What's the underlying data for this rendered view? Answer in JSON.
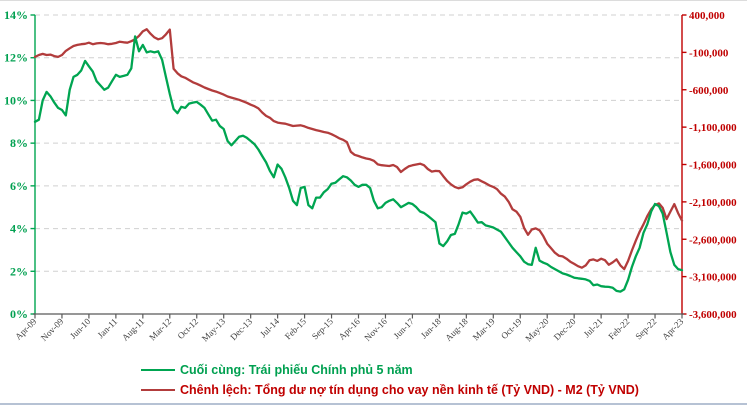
{
  "chart_data": {
    "type": "line",
    "title": "",
    "x_unit": "month",
    "x_range_labels": [
      "Apr-09",
      "Apr-23"
    ],
    "x_tick_labels": [
      "Apr-09",
      "Nov-09",
      "Jun-10",
      "Jan-11",
      "Aug-11",
      "Mar-12",
      "Oct-12",
      "May-13",
      "Dec-13",
      "Jul-14",
      "Feb-15",
      "Sep-15",
      "Apr-16",
      "Nov-16",
      "Jun-17",
      "Jan-18",
      "Aug-18",
      "Mar-19",
      "Oct-19",
      "May-20",
      "Dec-20",
      "Jul-21",
      "Feb-22",
      "Sep-22",
      "Apr-23"
    ],
    "left_axis": {
      "unit": "%",
      "min": 0,
      "max": 14,
      "step": 2,
      "labels": [
        "14%",
        "12%",
        "10%",
        "8%",
        "6%",
        "4%",
        "2%",
        "0%"
      ]
    },
    "right_axis": {
      "unit": "Tỷ VND",
      "min": -3600000,
      "max": 400000,
      "step": 500000,
      "labels": [
        "400,000",
        "-100,000",
        "-600,000",
        "-1,100,000",
        "-1,600,000",
        "-2,100,000",
        "-2,600,000",
        "-3,100,000",
        "-3,600,000"
      ]
    },
    "grid": "horizontal-dashed",
    "legend_position": "bottom-left",
    "series": [
      {
        "name": "Cuối cùng: Trái phiếu Chính phủ 5 năm",
        "axis": "left",
        "color": "#00a551",
        "text_color": "#00a050",
        "values": [
          9.0,
          9.1,
          10.0,
          10.4,
          10.2,
          9.9,
          9.65,
          9.55,
          9.3,
          10.5,
          11.1,
          11.2,
          11.4,
          11.85,
          11.6,
          11.35,
          10.9,
          10.7,
          10.5,
          10.6,
          10.9,
          11.2,
          11.1,
          11.15,
          11.2,
          11.5,
          13.0,
          12.3,
          12.6,
          12.25,
          12.3,
          12.25,
          12.3,
          11.9,
          11.1,
          10.3,
          9.6,
          9.4,
          9.7,
          9.65,
          9.85,
          9.9,
          9.93,
          9.8,
          9.65,
          9.35,
          9.05,
          9.1,
          8.8,
          8.66,
          8.1,
          7.9,
          8.1,
          8.3,
          8.35,
          8.25,
          8.1,
          7.95,
          7.7,
          7.4,
          7.1,
          6.7,
          6.4,
          7.0,
          6.8,
          6.4,
          5.9,
          5.3,
          5.1,
          5.9,
          5.95,
          5.1,
          4.95,
          5.45,
          5.45,
          5.7,
          5.85,
          6.1,
          6.15,
          6.3,
          6.45,
          6.4,
          6.25,
          6.05,
          5.95,
          6.05,
          6.05,
          5.9,
          5.3,
          4.95,
          5.0,
          5.2,
          5.3,
          5.37,
          5.2,
          5.0,
          5.1,
          5.2,
          5.15,
          5.0,
          4.8,
          4.73,
          4.6,
          4.45,
          4.3,
          3.3,
          3.18,
          3.4,
          3.7,
          3.75,
          4.2,
          4.75,
          4.7,
          4.8,
          4.55,
          4.28,
          4.3,
          4.15,
          4.1,
          4.05,
          3.95,
          3.85,
          3.6,
          3.35,
          3.1,
          2.9,
          2.7,
          2.45,
          2.33,
          2.3,
          3.1,
          2.5,
          2.4,
          2.33,
          2.2,
          2.1,
          2.0,
          1.9,
          1.85,
          1.78,
          1.7,
          1.67,
          1.65,
          1.62,
          1.55,
          1.35,
          1.38,
          1.3,
          1.28,
          1.27,
          1.23,
          1.08,
          1.05,
          1.15,
          1.6,
          2.2,
          2.7,
          3.1,
          3.8,
          4.2,
          4.8,
          5.15,
          5.05,
          4.7,
          3.8,
          2.9,
          2.3,
          2.1,
          2.05
        ]
      },
      {
        "name": "Chênh lệch: Tổng dư nợ tín dụng cho vay nền kinh tế (Tỷ VND) - M2 (Tỷ VND)",
        "axis": "right",
        "color": "#b23c3c",
        "text_color": "#c00000",
        "values": [
          -160000,
          -135000,
          -120000,
          -135000,
          -130000,
          -150000,
          -160000,
          -135000,
          -80000,
          -45000,
          -15000,
          0,
          10000,
          15000,
          30000,
          10000,
          20000,
          25000,
          20000,
          10000,
          15000,
          25000,
          43000,
          35000,
          30000,
          50000,
          75000,
          120000,
          180000,
          210000,
          150000,
          100000,
          75000,
          90000,
          140000,
          205000,
          -320000,
          -380000,
          -420000,
          -440000,
          -470000,
          -500000,
          -520000,
          -545000,
          -570000,
          -590000,
          -610000,
          -625000,
          -645000,
          -665000,
          -690000,
          -705000,
          -720000,
          -735000,
          -755000,
          -775000,
          -800000,
          -820000,
          -850000,
          -905000,
          -950000,
          -975000,
          -1020000,
          -1040000,
          -1048000,
          -1054000,
          -1070000,
          -1085000,
          -1080000,
          -1076000,
          -1090000,
          -1110000,
          -1125000,
          -1140000,
          -1152000,
          -1165000,
          -1175000,
          -1195000,
          -1220000,
          -1250000,
          -1270000,
          -1300000,
          -1430000,
          -1470000,
          -1486000,
          -1505000,
          -1520000,
          -1530000,
          -1550000,
          -1598000,
          -1610000,
          -1615000,
          -1620000,
          -1607000,
          -1633000,
          -1700000,
          -1660000,
          -1625000,
          -1611000,
          -1600000,
          -1589000,
          -1610000,
          -1660000,
          -1695000,
          -1685000,
          -1690000,
          -1755000,
          -1820000,
          -1865000,
          -1900000,
          -1918000,
          -1905000,
          -1865000,
          -1830000,
          -1805000,
          -1798000,
          -1825000,
          -1850000,
          -1880000,
          -1900000,
          -1930000,
          -1990000,
          -2030000,
          -2100000,
          -2200000,
          -2230000,
          -2300000,
          -2450000,
          -2540000,
          -2470000,
          -2455000,
          -2480000,
          -2560000,
          -2660000,
          -2720000,
          -2780000,
          -2820000,
          -2830000,
          -2860000,
          -2900000,
          -2930000,
          -2960000,
          -2980000,
          -2950000,
          -2880000,
          -2870000,
          -2890000,
          -2860000,
          -2880000,
          -2940000,
          -2910000,
          -2870000,
          -2950000,
          -3000000,
          -2890000,
          -2750000,
          -2620000,
          -2500000,
          -2400000,
          -2290000,
          -2200000,
          -2140000,
          -2120000,
          -2180000,
          -2330000,
          -2230000,
          -2130000,
          -2250000,
          -2350000
        ]
      }
    ]
  },
  "colors": {
    "grid": "#d0d0d0",
    "bottom_axis": "#595959",
    "x_label": "#404040",
    "left_axis": "#00a551",
    "right_axis": "#c00000",
    "frame_bottom": "#b6c2d4"
  }
}
